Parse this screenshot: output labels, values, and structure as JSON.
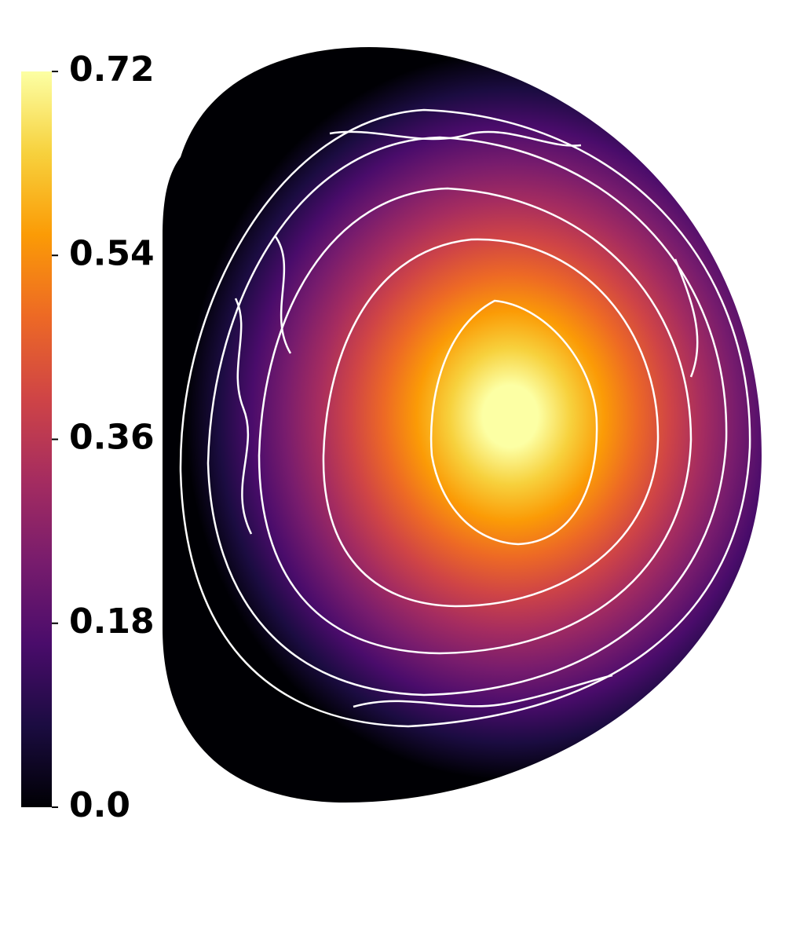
{
  "chart_data": {
    "type": "contour",
    "colormap": [
      "#000004",
      "#1b0c41",
      "#4a0c6b",
      "#781c6d",
      "#a52c60",
      "#cf4446",
      "#ed6925",
      "#fb9b06",
      "#f7d13d",
      "#fcffa4"
    ],
    "clim": [
      0,
      0.72
    ],
    "colorbar_ticks": [
      {
        "value": 0,
        "label": "0.0"
      },
      0.18,
      0.36,
      0.54,
      0.72
    ],
    "contour_color": "#ffffff"
  }
}
